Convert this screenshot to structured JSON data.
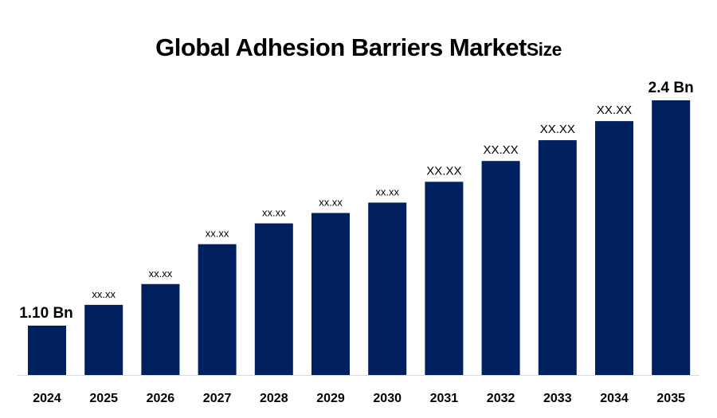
{
  "chart_data": {
    "type": "bar",
    "title": "Global Adhesion Barriers Market",
    "title_suffix": "Size",
    "xlabel": "",
    "ylabel": "",
    "categories": [
      "2024",
      "2025",
      "2026",
      "2027",
      "2028",
      "2029",
      "2030",
      "2031",
      "2032",
      "2033",
      "2034",
      "2035"
    ],
    "values": [
      1.1,
      1.22,
      1.34,
      1.57,
      1.69,
      1.75,
      1.81,
      1.93,
      2.05,
      2.17,
      2.28,
      2.4
    ],
    "data_labels": [
      "1.10 Bn",
      "xx.xx",
      "xx.xx",
      "xx.xx",
      "xx.xx",
      "xx.xx",
      "xx.xx",
      "XX.XX",
      "XX.XX",
      "XX.XX",
      "XX.XX",
      "2.4 Bn"
    ],
    "ylim": [
      0.815,
      2.4
    ],
    "grid": false,
    "legend": "none",
    "bar_color": "#002060"
  }
}
